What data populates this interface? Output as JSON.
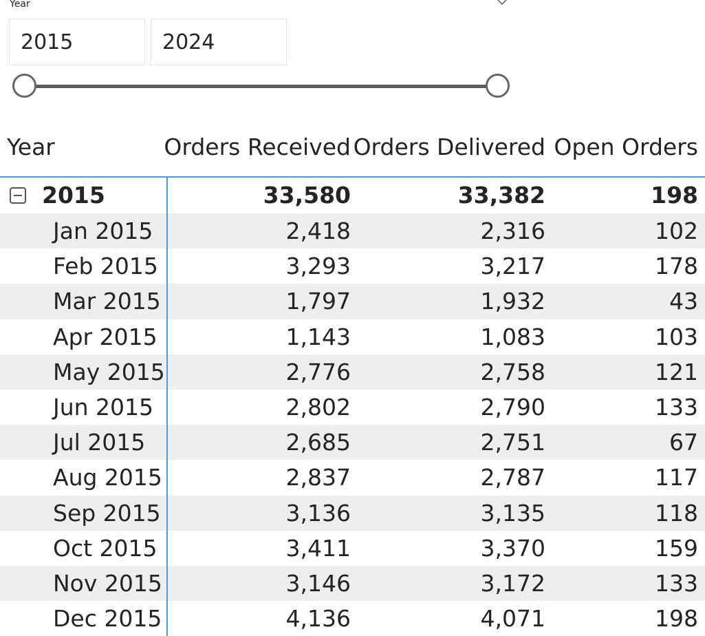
{
  "slicer": {
    "title": "Year",
    "start_value": "2015",
    "end_value": "2024",
    "range_min": 2015,
    "range_max": 2024,
    "selected_start": 2015,
    "selected_end": 2024
  },
  "matrix": {
    "headers": [
      "Year",
      "Orders Received",
      "Orders Delivered",
      "Open Orders"
    ],
    "total_row": {
      "label": "2015",
      "orders_received": "33,580",
      "orders_delivered": "33,382",
      "open_orders": "198"
    },
    "rows": [
      {
        "label": "Jan 2015",
        "orders_received": "2,418",
        "orders_delivered": "2,316",
        "open_orders": "102"
      },
      {
        "label": "Feb 2015",
        "orders_received": "3,293",
        "orders_delivered": "3,217",
        "open_orders": "178"
      },
      {
        "label": "Mar 2015",
        "orders_received": "1,797",
        "orders_delivered": "1,932",
        "open_orders": "43"
      },
      {
        "label": "Apr 2015",
        "orders_received": "1,143",
        "orders_delivered": "1,083",
        "open_orders": "103"
      },
      {
        "label": "May 2015",
        "orders_received": "2,776",
        "orders_delivered": "2,758",
        "open_orders": "121"
      },
      {
        "label": "Jun 2015",
        "orders_received": "2,802",
        "orders_delivered": "2,790",
        "open_orders": "133"
      },
      {
        "label": "Jul 2015",
        "orders_received": "2,685",
        "orders_delivered": "2,751",
        "open_orders": "67"
      },
      {
        "label": "Aug 2015",
        "orders_received": "2,837",
        "orders_delivered": "2,787",
        "open_orders": "117"
      },
      {
        "label": "Sep 2015",
        "orders_received": "3,136",
        "orders_delivered": "3,135",
        "open_orders": "118"
      },
      {
        "label": "Oct 2015",
        "orders_received": "3,411",
        "orders_delivered": "3,370",
        "open_orders": "159"
      },
      {
        "label": "Nov 2015",
        "orders_received": "3,146",
        "orders_delivered": "3,172",
        "open_orders": "133"
      },
      {
        "label": "Dec 2015",
        "orders_received": "4,136",
        "orders_delivered": "4,071",
        "open_orders": "198"
      }
    ]
  },
  "colors": {
    "accent_border": "#4a9ae0",
    "alt_row": "#eeeeee",
    "slider_track": "#5b5b5b"
  },
  "icons": {
    "slicer_dropdown": "chevron-down-icon",
    "row_collapse": "collapse-minus-icon"
  }
}
